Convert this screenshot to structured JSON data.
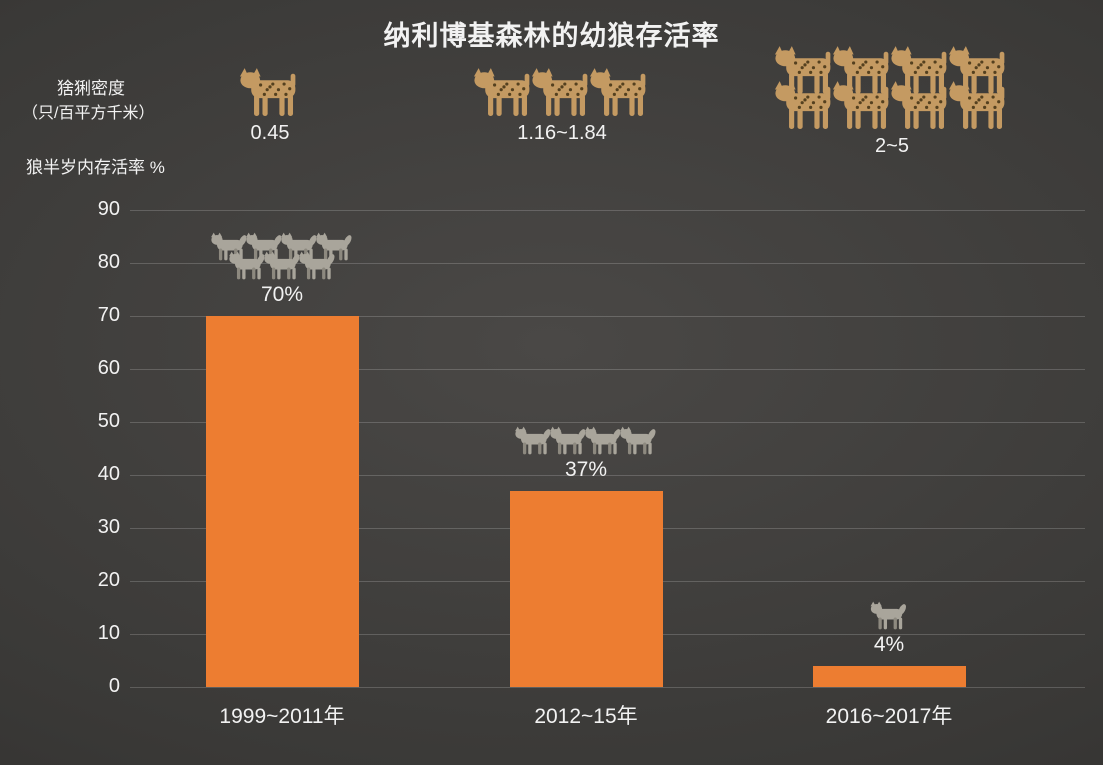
{
  "title": "纳利博基森林的幼狼存活率",
  "left_labels": {
    "lynx_density_title": "猞猁密度",
    "lynx_density_unit": "（只/百平方千米）",
    "y_axis_title": "狼半岁内存活率 %"
  },
  "colors": {
    "background_center": "#4a4846",
    "background_mid": "#3a3937",
    "background_edge": "#2b2a29",
    "bar": "#ED7D31",
    "text": "#f2f2f2",
    "gridline": "rgba(255,255,255,0.18)",
    "lynx_body": "#c49a62",
    "lynx_spots": "#54401f",
    "wolf_body": "#a9a59b",
    "wolf_shade": "#8d897f"
  },
  "chart_data": {
    "type": "bar",
    "title": "纳利博基森林的幼狼存活率",
    "categories": [
      "1999~2011年",
      "2012~15年",
      "2016~2017年"
    ],
    "series": [
      {
        "name": "狼半岁内存活率 %",
        "values": [
          70,
          37,
          4
        ],
        "data_labels": [
          "70%",
          "37%",
          "4%"
        ],
        "color": "#ED7D31"
      }
    ],
    "secondary_annotations": {
      "name": "猞猁密度（只/百平方千米）",
      "values": [
        "0.45",
        "1.16~1.84",
        "2~5"
      ]
    },
    "xlabel": "",
    "ylabel": "狼半岁内存活率 %",
    "ylim": [
      0,
      90
    ],
    "yticks": [
      0,
      10,
      20,
      30,
      40,
      50,
      60,
      70,
      80,
      90
    ],
    "grid": true,
    "legend_position": "none",
    "icon_counts": {
      "lynx": [
        1,
        3,
        8
      ],
      "wolf": [
        7,
        4,
        1
      ]
    }
  },
  "groups": [
    {
      "category": "1999~2011年",
      "survival_value": 70,
      "survival_label": "70%",
      "lynx_density_label": "0.45",
      "lynx_icon_rows": [
        1
      ],
      "wolf_icon_rows": [
        4,
        3
      ]
    },
    {
      "category": "2012~15年",
      "survival_value": 37,
      "survival_label": "37%",
      "lynx_density_label": "1.16~1.84",
      "lynx_icon_rows": [
        3
      ],
      "wolf_icon_rows": [
        4
      ]
    },
    {
      "category": "2016~2017年",
      "survival_value": 4,
      "survival_label": "4%",
      "lynx_density_label": "2~5",
      "lynx_icon_rows": [
        4,
        4
      ],
      "wolf_icon_rows": [
        1
      ]
    }
  ]
}
